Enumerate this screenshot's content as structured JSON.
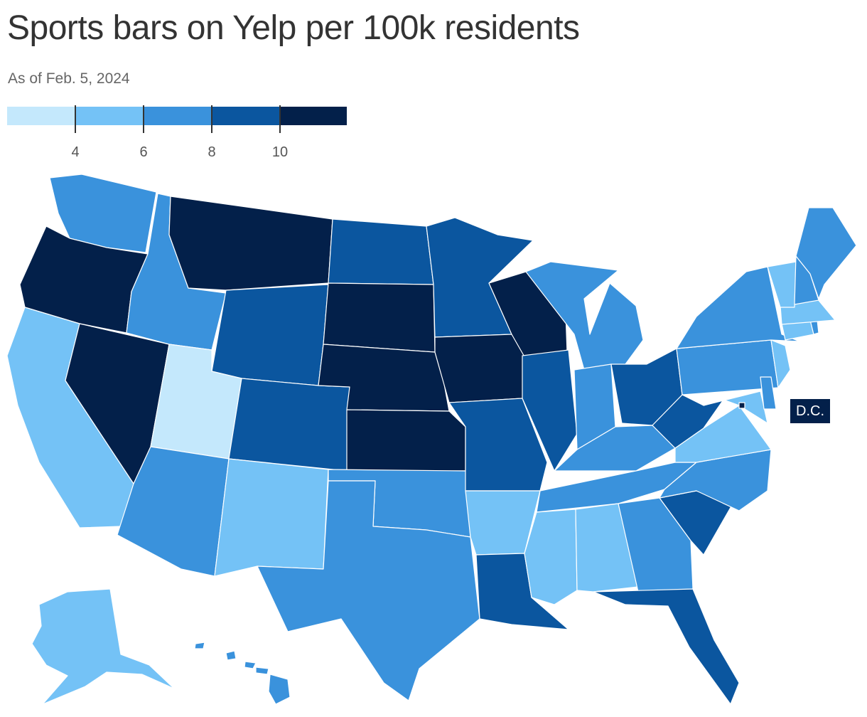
{
  "header": {
    "title": "Sports bars on Yelp per 100k residents",
    "subtitle": "As of Feb. 5, 2024"
  },
  "legend": {
    "bins": [
      {
        "color": "#c4e8fc"
      },
      {
        "color": "#74c2f6"
      },
      {
        "color": "#3a92dc"
      },
      {
        "color": "#0b569f"
      },
      {
        "color": "#03204a"
      }
    ],
    "ticks": [
      "4",
      "6",
      "8",
      "10"
    ]
  },
  "dc_label": "D.C.",
  "chart_data": {
    "type": "choropleth",
    "legend_placement": "top-left",
    "bins": [
      {
        "range": "below 4"
      },
      {
        "range": "4–6"
      },
      {
        "range": "6–8"
      },
      {
        "range": "8–10"
      },
      {
        "range": "10 and above"
      }
    ],
    "states": [
      {
        "state": "WA",
        "bin": 2
      },
      {
        "state": "OR",
        "bin": 4
      },
      {
        "state": "CA",
        "bin": 1
      },
      {
        "state": "NV",
        "bin": 4
      },
      {
        "state": "ID",
        "bin": 2
      },
      {
        "state": "MT",
        "bin": 4
      },
      {
        "state": "WY",
        "bin": 3
      },
      {
        "state": "UT",
        "bin": 0
      },
      {
        "state": "AZ",
        "bin": 2
      },
      {
        "state": "NM",
        "bin": 1
      },
      {
        "state": "CO",
        "bin": 3
      },
      {
        "state": "ND",
        "bin": 3
      },
      {
        "state": "SD",
        "bin": 4
      },
      {
        "state": "NE",
        "bin": 4
      },
      {
        "state": "KS",
        "bin": 4
      },
      {
        "state": "OK",
        "bin": 2
      },
      {
        "state": "TX",
        "bin": 2
      },
      {
        "state": "MN",
        "bin": 3
      },
      {
        "state": "IA",
        "bin": 4
      },
      {
        "state": "MO",
        "bin": 3
      },
      {
        "state": "AR",
        "bin": 1
      },
      {
        "state": "LA",
        "bin": 3
      },
      {
        "state": "WI",
        "bin": 4
      },
      {
        "state": "IL",
        "bin": 3
      },
      {
        "state": "MI",
        "bin": 2
      },
      {
        "state": "IN",
        "bin": 2
      },
      {
        "state": "OH",
        "bin": 3
      },
      {
        "state": "KY",
        "bin": 2
      },
      {
        "state": "TN",
        "bin": 2
      },
      {
        "state": "MS",
        "bin": 1
      },
      {
        "state": "AL",
        "bin": 1
      },
      {
        "state": "GA",
        "bin": 2
      },
      {
        "state": "FL",
        "bin": 3
      },
      {
        "state": "SC",
        "bin": 3
      },
      {
        "state": "NC",
        "bin": 2
      },
      {
        "state": "VA",
        "bin": 1
      },
      {
        "state": "WV",
        "bin": 3
      },
      {
        "state": "PA",
        "bin": 2
      },
      {
        "state": "NY",
        "bin": 2
      },
      {
        "state": "VT",
        "bin": 1
      },
      {
        "state": "NH",
        "bin": 2
      },
      {
        "state": "ME",
        "bin": 2
      },
      {
        "state": "MA",
        "bin": 1
      },
      {
        "state": "RI",
        "bin": 2
      },
      {
        "state": "CT",
        "bin": 1
      },
      {
        "state": "NJ",
        "bin": 1
      },
      {
        "state": "DE",
        "bin": 2
      },
      {
        "state": "MD",
        "bin": 1
      },
      {
        "state": "DC",
        "bin": 4
      },
      {
        "state": "AK",
        "bin": 1
      },
      {
        "state": "HI",
        "bin": 2
      }
    ]
  }
}
